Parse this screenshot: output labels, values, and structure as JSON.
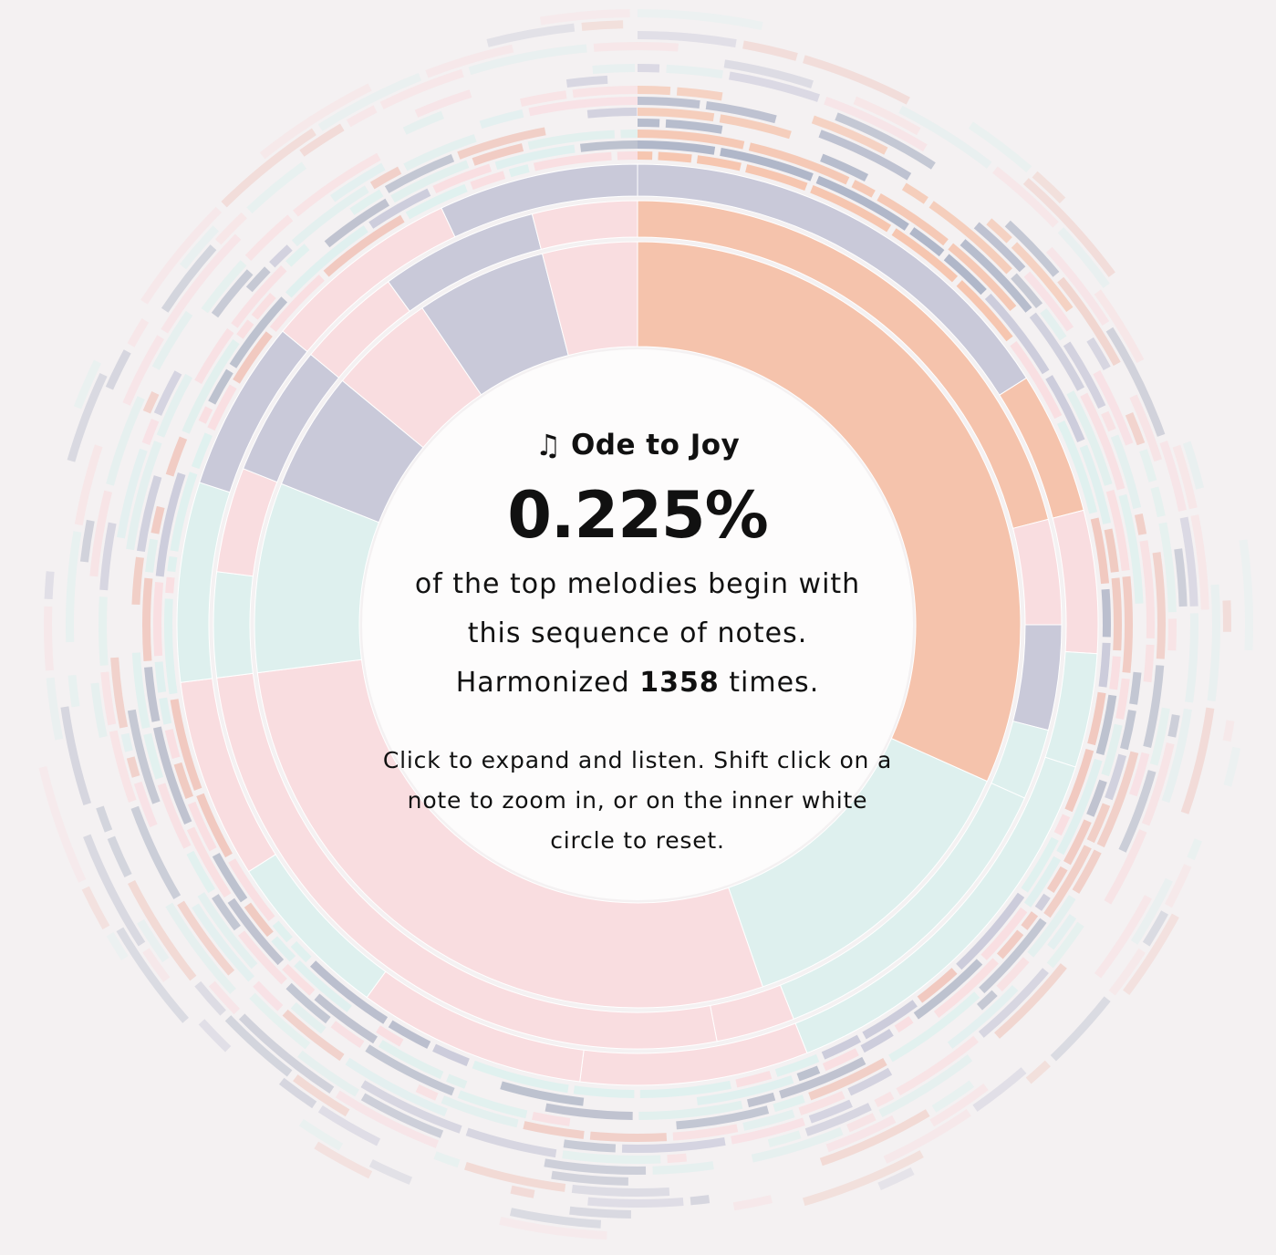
{
  "song": {
    "icon": "music-note-icon",
    "title": "Ode to Joy"
  },
  "stat": {
    "percent": "0.225%",
    "line1": "of the top melodies begin with",
    "line2": "this sequence of notes.",
    "harmonized_prefix": "Harmonized",
    "harmonized_count": "1358",
    "harmonized_suffix": "times."
  },
  "hint": "Click to expand and listen. Shift click on a note to zoom in, or on the inner white circle to reset.",
  "colors": {
    "background": "#f4f1f2",
    "center": "#fdfcfc",
    "selected": "#f5c3ac",
    "pink": "#f9dde0",
    "mint": "#def0ee",
    "slate": "#c9c9d9",
    "divider": "#ffffff"
  },
  "chart_data": {
    "type": "sunburst",
    "title": "",
    "selected_path": "Ode to Joy",
    "rings": [
      [
        {
          "start": 0,
          "end": 0.317,
          "color": "selected"
        },
        {
          "start": 0.317,
          "end": 0.447,
          "color": "mint"
        },
        {
          "start": 0.447,
          "end": 0.73,
          "color": "pink"
        },
        {
          "start": 0.73,
          "end": 0.81,
          "color": "mint"
        },
        {
          "start": 0.81,
          "end": 0.86,
          "color": "slate"
        },
        {
          "start": 0.86,
          "end": 0.905,
          "color": "pink"
        },
        {
          "start": 0.905,
          "end": 0.96,
          "color": "slate"
        },
        {
          "start": 0.96,
          "end": 1,
          "color": "pink"
        }
      ],
      [
        {
          "start": 0,
          "end": 0.21,
          "color": "selected"
        },
        {
          "start": 0.21,
          "end": 0.25,
          "color": "pink"
        },
        {
          "start": 0.25,
          "end": 0.29,
          "color": "slate"
        },
        {
          "start": 0.29,
          "end": 0.317,
          "color": "mint"
        },
        {
          "start": 0.317,
          "end": 0.44,
          "color": "mint"
        },
        {
          "start": 0.44,
          "end": 0.47,
          "color": "pink"
        },
        {
          "start": 0.47,
          "end": 0.73,
          "color": "pink"
        },
        {
          "start": 0.73,
          "end": 0.77,
          "color": "mint"
        },
        {
          "start": 0.77,
          "end": 0.81,
          "color": "pink"
        },
        {
          "start": 0.81,
          "end": 0.86,
          "color": "slate"
        },
        {
          "start": 0.86,
          "end": 0.9,
          "color": "pink"
        },
        {
          "start": 0.9,
          "end": 0.96,
          "color": "slate"
        },
        {
          "start": 0.96,
          "end": 1,
          "color": "pink"
        }
      ],
      [
        {
          "start": 0,
          "end": 0.16,
          "color": "slate"
        },
        {
          "start": 0.16,
          "end": 0.21,
          "color": "selected"
        },
        {
          "start": 0.21,
          "end": 0.26,
          "color": "pink"
        },
        {
          "start": 0.26,
          "end": 0.3,
          "color": "mint"
        },
        {
          "start": 0.3,
          "end": 0.44,
          "color": "mint"
        },
        {
          "start": 0.44,
          "end": 0.52,
          "color": "pink"
        },
        {
          "start": 0.52,
          "end": 0.6,
          "color": "pink"
        },
        {
          "start": 0.6,
          "end": 0.66,
          "color": "mint"
        },
        {
          "start": 0.66,
          "end": 0.73,
          "color": "pink"
        },
        {
          "start": 0.73,
          "end": 0.8,
          "color": "mint"
        },
        {
          "start": 0.8,
          "end": 0.86,
          "color": "slate"
        },
        {
          "start": 0.86,
          "end": 0.93,
          "color": "pink"
        },
        {
          "start": 0.93,
          "end": 1,
          "color": "slate"
        }
      ]
    ]
  }
}
